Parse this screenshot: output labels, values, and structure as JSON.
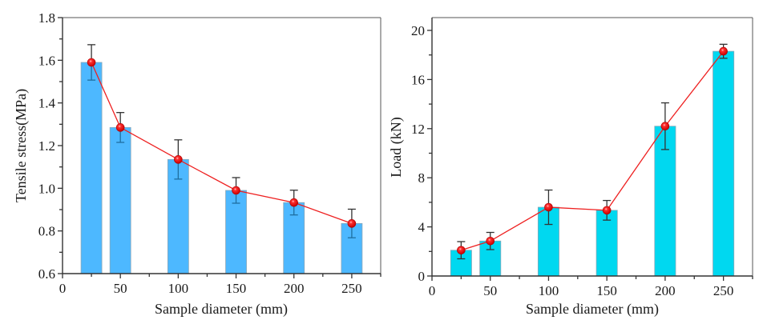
{
  "chart_data": [
    {
      "type": "bar",
      "overlay": "line",
      "title": "",
      "xlabel": "Sample diameter (mm)",
      "ylabel": "Tensile stress(MPa)",
      "x": [
        25,
        50,
        100,
        150,
        200,
        250
      ],
      "values": [
        1.59,
        1.285,
        1.135,
        0.99,
        0.933,
        0.835
      ],
      "errors": [
        0.083,
        0.07,
        0.092,
        0.06,
        0.058,
        0.067
      ],
      "xlim": [
        0,
        275
      ],
      "ylim": [
        0.6,
        1.8
      ],
      "xticks": [
        0,
        50,
        100,
        150,
        200,
        250
      ],
      "xtick_labels": [
        "0",
        "50",
        "100",
        "150",
        "200",
        "250"
      ],
      "yticks": [
        0.6,
        0.8,
        1.0,
        1.2,
        1.4,
        1.6,
        1.8
      ],
      "ytick_labels": [
        "0.6",
        "0.8",
        "1.0",
        "1.2",
        "1.4",
        "1.6",
        "1.8"
      ],
      "bar_width_units": 18,
      "bar_color": "#4DB8FF",
      "line_color": "#EE2020",
      "marker_color": "#FF1010",
      "grid": false,
      "legend": "none"
    },
    {
      "type": "bar",
      "overlay": "line",
      "title": "",
      "xlabel": "Sample diameter (mm)",
      "ylabel": "Load (kN)",
      "x": [
        25,
        50,
        100,
        150,
        200,
        250
      ],
      "values": [
        2.1,
        2.85,
        5.6,
        5.35,
        12.2,
        18.3
      ],
      "errors": [
        0.7,
        0.7,
        1.4,
        0.8,
        1.9,
        0.57
      ],
      "xlim": [
        0,
        275
      ],
      "ylim": [
        0,
        21
      ],
      "xticks": [
        0,
        50,
        100,
        150,
        200,
        250
      ],
      "xtick_labels": [
        "0",
        "50",
        "100",
        "150",
        "200",
        "250"
      ],
      "yticks": [
        0,
        4,
        8,
        12,
        16,
        20
      ],
      "ytick_labels": [
        "0",
        "4",
        "8",
        "12",
        "16",
        "20"
      ],
      "bar_width_units": 18,
      "bar_color": "#00D8F0",
      "line_color": "#EE2020",
      "marker_color": "#FF1010",
      "grid": false,
      "legend": "none"
    }
  ]
}
